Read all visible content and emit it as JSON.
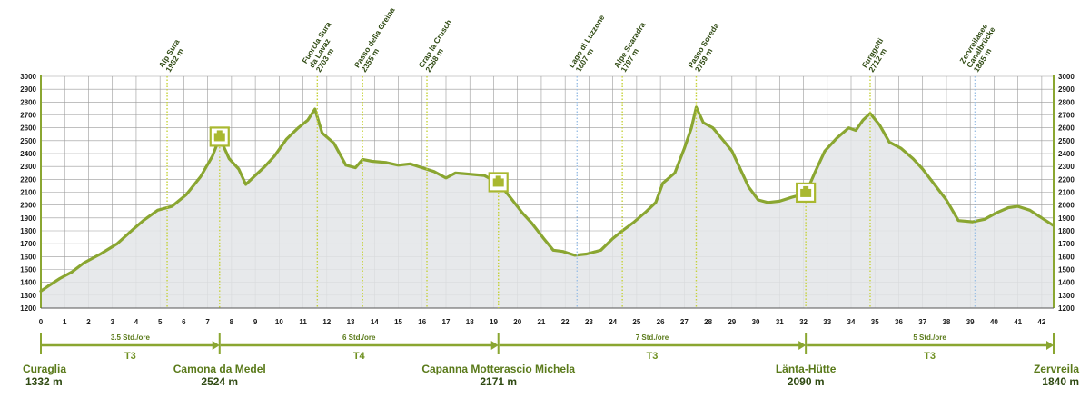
{
  "chart_data": {
    "type": "area",
    "xlim": [
      0,
      42.5
    ],
    "ylim": [
      1200,
      3000
    ],
    "x_ticks": [
      0,
      1,
      2,
      3,
      4,
      5,
      6,
      7,
      8,
      9,
      10,
      11,
      12,
      13,
      14,
      15,
      16,
      17,
      18,
      19,
      20,
      21,
      22,
      23,
      24,
      25,
      26,
      27,
      28,
      29,
      30,
      31,
      32,
      33,
      34,
      35,
      36,
      37,
      38,
      39,
      40,
      41,
      42
    ],
    "y_ticks": [
      1200,
      1300,
      1400,
      1500,
      1600,
      1700,
      1800,
      1900,
      2000,
      2100,
      2200,
      2300,
      2400,
      2500,
      2600,
      2700,
      2800,
      2900,
      3000
    ],
    "grid": true,
    "colors": {
      "line": "#8aa631",
      "fill": "#e3e5e8",
      "grid": "#9a9a9a",
      "accent": "#c6d23a",
      "dashed_blue": "#9cc0e6"
    },
    "profile": [
      [
        0,
        1332
      ],
      [
        0.3,
        1370
      ],
      [
        0.8,
        1430
      ],
      [
        1.3,
        1480
      ],
      [
        1.8,
        1550
      ],
      [
        2.5,
        1620
      ],
      [
        3.2,
        1700
      ],
      [
        3.8,
        1800
      ],
      [
        4.3,
        1880
      ],
      [
        4.9,
        1960
      ],
      [
        5.5,
        1990
      ],
      [
        6.1,
        2080
      ],
      [
        6.7,
        2220
      ],
      [
        7.2,
        2380
      ],
      [
        7.5,
        2524
      ],
      [
        7.9,
        2360
      ],
      [
        8.3,
        2280
      ],
      [
        8.6,
        2160
      ],
      [
        9.0,
        2230
      ],
      [
        9.4,
        2300
      ],
      [
        9.8,
        2380
      ],
      [
        10.3,
        2510
      ],
      [
        10.8,
        2600
      ],
      [
        11.2,
        2660
      ],
      [
        11.5,
        2745
      ],
      [
        11.8,
        2560
      ],
      [
        12.3,
        2480
      ],
      [
        12.8,
        2310
      ],
      [
        13.2,
        2290
      ],
      [
        13.5,
        2355
      ],
      [
        13.9,
        2340
      ],
      [
        14.5,
        2330
      ],
      [
        15.0,
        2310
      ],
      [
        15.5,
        2320
      ],
      [
        16.0,
        2290
      ],
      [
        16.5,
        2260
      ],
      [
        17.0,
        2210
      ],
      [
        17.4,
        2250
      ],
      [
        18.0,
        2240
      ],
      [
        18.6,
        2230
      ],
      [
        19.2,
        2171
      ],
      [
        19.7,
        2060
      ],
      [
        20.2,
        1940
      ],
      [
        20.6,
        1860
      ],
      [
        21.1,
        1740
      ],
      [
        21.5,
        1650
      ],
      [
        21.9,
        1640
      ],
      [
        22.4,
        1610
      ],
      [
        22.9,
        1620
      ],
      [
        23.5,
        1650
      ],
      [
        24.0,
        1740
      ],
      [
        24.4,
        1800
      ],
      [
        24.9,
        1870
      ],
      [
        25.4,
        1950
      ],
      [
        25.8,
        2020
      ],
      [
        26.1,
        2170
      ],
      [
        26.6,
        2250
      ],
      [
        27.0,
        2440
      ],
      [
        27.3,
        2600
      ],
      [
        27.5,
        2759
      ],
      [
        27.8,
        2640
      ],
      [
        28.2,
        2600
      ],
      [
        28.6,
        2510
      ],
      [
        29.0,
        2420
      ],
      [
        29.3,
        2300
      ],
      [
        29.7,
        2140
      ],
      [
        30.1,
        2040
      ],
      [
        30.5,
        2020
      ],
      [
        31.0,
        2030
      ],
      [
        31.5,
        2060
      ],
      [
        32.1,
        2090
      ],
      [
        32.5,
        2260
      ],
      [
        32.9,
        2420
      ],
      [
        33.4,
        2520
      ],
      [
        33.9,
        2600
      ],
      [
        34.2,
        2580
      ],
      [
        34.5,
        2660
      ],
      [
        34.8,
        2712
      ],
      [
        35.2,
        2620
      ],
      [
        35.6,
        2490
      ],
      [
        36.1,
        2440
      ],
      [
        36.6,
        2360
      ],
      [
        37.0,
        2280
      ],
      [
        37.5,
        2160
      ],
      [
        38.0,
        2040
      ],
      [
        38.5,
        1880
      ],
      [
        39.1,
        1870
      ],
      [
        39.6,
        1890
      ],
      [
        40.1,
        1940
      ],
      [
        40.6,
        1980
      ],
      [
        41.0,
        1990
      ],
      [
        41.5,
        1960
      ],
      [
        42.0,
        1900
      ],
      [
        42.5,
        1840
      ]
    ],
    "waypoints": [
      {
        "km": 5.3,
        "label": "Alp Sura",
        "alt": "1982 m",
        "line": "green"
      },
      {
        "km": 11.6,
        "label": "Fuorcla Sura\nda Lavaz",
        "alt": "2703 m",
        "line": "green"
      },
      {
        "km": 13.5,
        "label": "Passo della Greina",
        "alt": "2355 m",
        "line": "green"
      },
      {
        "km": 16.2,
        "label": "Crap la Crusch",
        "alt": "2268 m",
        "line": "green"
      },
      {
        "km": 22.5,
        "label": "Lago di Luzzone",
        "alt": "1607 m",
        "line": "blue"
      },
      {
        "km": 24.4,
        "label": "Alpe Scaradra",
        "alt": "1797 m",
        "line": "green"
      },
      {
        "km": 27.5,
        "label": "Passo Soreda",
        "alt": "2759 m",
        "line": "green"
      },
      {
        "km": 34.8,
        "label": "Furggelti",
        "alt": "2712 m",
        "line": "green"
      },
      {
        "km": 39.2,
        "label": "Zervreilasee\nCanalbrücke",
        "alt": "1865 m",
        "line": "blue"
      }
    ],
    "huts": [
      {
        "km": 7.5,
        "alt": 2524
      },
      {
        "km": 19.2,
        "alt": 2171
      },
      {
        "km": 32.1,
        "alt": 2090
      }
    ],
    "stages": [
      {
        "from": 0,
        "to": 7.5,
        "time": "3.5 Std./ore",
        "grade": "T3"
      },
      {
        "from": 7.5,
        "to": 19.2,
        "time": "6 Std./ore",
        "grade": "T4"
      },
      {
        "from": 19.2,
        "to": 32.1,
        "time": "7 Std./ore",
        "grade": "T3"
      },
      {
        "from": 32.1,
        "to": 42.5,
        "time": "5 Std./ore",
        "grade": "T3"
      }
    ],
    "endpoints": [
      {
        "km": 0,
        "name": "Curaglia",
        "alt": "1332 m",
        "align": "start"
      },
      {
        "km": 7.5,
        "name": "Camona da Medel",
        "alt": "2524 m",
        "align": "middle"
      },
      {
        "km": 19.2,
        "name": "Capanna Motterascio Michela",
        "alt": "2171 m",
        "align": "middle"
      },
      {
        "km": 32.1,
        "name": "Länta-Hütte",
        "alt": "2090 m",
        "align": "middle"
      },
      {
        "km": 42.5,
        "name": "Zervreila",
        "alt": "1840 m",
        "align": "end"
      }
    ]
  }
}
